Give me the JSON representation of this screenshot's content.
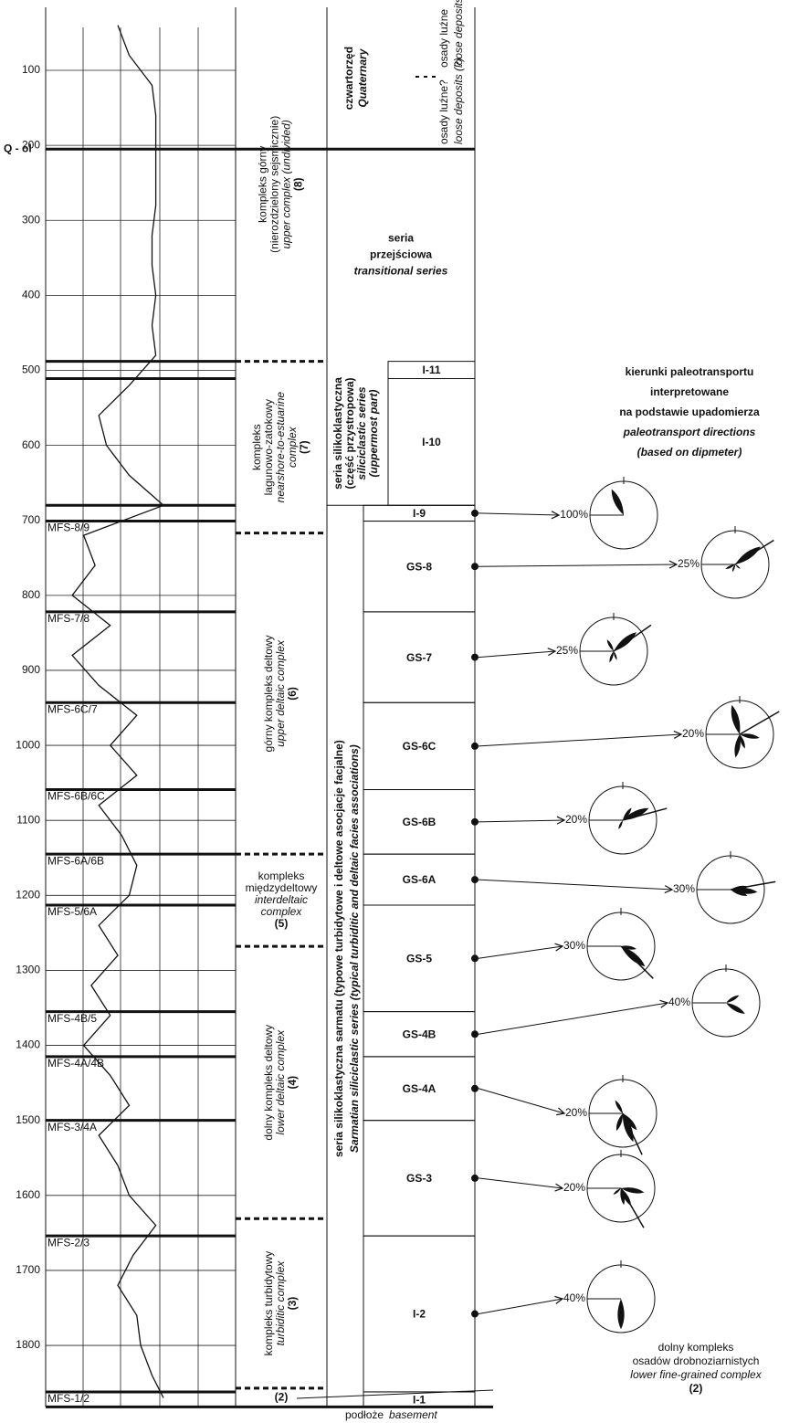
{
  "depth_axis": {
    "ticks": [
      100,
      200,
      300,
      400,
      500,
      600,
      700,
      800,
      900,
      1000,
      1100,
      1200,
      1300,
      1400,
      1500,
      1600,
      1700,
      1800
    ]
  },
  "log": {
    "xlim": [
      0,
      5
    ],
    "depth": [
      40,
      80,
      120,
      160,
      200,
      240,
      280,
      320,
      360,
      400,
      440,
      480,
      520,
      560,
      600,
      640,
      680,
      720,
      760,
      800,
      840,
      880,
      920,
      960,
      1000,
      1040,
      1080,
      1120,
      1160,
      1200,
      1240,
      1280,
      1320,
      1360,
      1400,
      1440,
      1480,
      1520,
      1560,
      1600,
      1640,
      1680,
      1720,
      1760,
      1800,
      1840,
      1870
    ],
    "values": [
      1.9,
      2.2,
      2.8,
      2.9,
      2.9,
      2.9,
      2.9,
      2.8,
      2.8,
      2.9,
      2.8,
      2.9,
      2.2,
      1.4,
      1.6,
      2.2,
      3.1,
      1.0,
      1.3,
      0.7,
      1.7,
      0.7,
      1.4,
      2.4,
      1.7,
      2.4,
      1.4,
      2.0,
      2.4,
      2.2,
      1.4,
      1.9,
      1.2,
      1.7,
      1.0,
      1.7,
      2.2,
      1.4,
      1.9,
      2.2,
      2.9,
      2.3,
      1.9,
      2.4,
      2.5,
      2.8,
      3.1
    ]
  },
  "horizons": [
    {
      "label": "Q - ol",
      "depth": 205,
      "full_width": true
    },
    {
      "depth": 488
    },
    {
      "depth": 511
    },
    {
      "depth": 680
    },
    {
      "label": "MFS-8/9",
      "depth": 701
    },
    {
      "label": "MFS-7/8",
      "depth": 822
    },
    {
      "label": "MFS-6C/7",
      "depth": 943
    },
    {
      "label": "MFS-6B/6C",
      "depth": 1059
    },
    {
      "label": "MFS-6A/6B",
      "depth": 1145
    },
    {
      "label": "MFS-5/6A",
      "depth": 1213
    },
    {
      "label": "MFS-4B/5",
      "depth": 1355
    },
    {
      "label": "MFS-4A/4B",
      "depth": 1415
    },
    {
      "label": "MFS-3/4A",
      "depth": 1500
    },
    {
      "label": "MFS-2/3",
      "depth": 1654
    },
    {
      "label": "MFS-1/2",
      "depth": 1862
    },
    {
      "depth": 1882
    }
  ],
  "complexes": [
    {
      "pl": [
        "kompleks górny",
        "(nierozdzielony sejsmicznie)"
      ],
      "en": [
        "upper complex (undivided)"
      ],
      "number": "(8)",
      "bottom": 488
    },
    {
      "pl": [
        "kompleks",
        "lagunowo-zatokowy"
      ],
      "en": [
        "nearshore-to-estuarine",
        "complex"
      ],
      "number": "(7)",
      "bottom": 717
    },
    {
      "pl": [
        "górny kompleks deltowy"
      ],
      "en": [
        "upper deltaic complex"
      ],
      "number": "(6)",
      "bottom": 1145
    },
    {
      "pl": [
        "kompleks",
        "międzydeltowy"
      ],
      "en": [
        "interdeltaic",
        "complex"
      ],
      "number": "(5)",
      "bottom": 1268,
      "horizontal": true
    },
    {
      "pl": [
        "dolny kompleks deltowy"
      ],
      "en": [
        "lower deltaic complex"
      ],
      "number": "(4)",
      "bottom": 1631
    },
    {
      "pl": [
        "kompleks turbidytowy"
      ],
      "en": [
        "turbiditic complex"
      ],
      "number": "(3)",
      "bottom": 1857
    },
    {
      "number": "(2)",
      "bottom": 1882,
      "horizontal": true
    }
  ],
  "callout": {
    "pl": [
      "dolny kompleks",
      "osadów drobnoziarnistych"
    ],
    "en": [
      "lower fine-grained complex"
    ],
    "number": "(2)"
  },
  "series_column": {
    "quaternary": {
      "pl": "czwartorzęd",
      "en": "Quaternary",
      "bottom": 205,
      "notes": [
        {
          "pl": "osady luźne?",
          "en": "loose deposits (?)"
        },
        {
          "pl": "osady luźne",
          "en": "loose deposits"
        }
      ]
    },
    "transitional": {
      "pl": [
        "seria",
        "przejściowa"
      ],
      "en": "transitional series",
      "bottom": 488
    },
    "uppermost": {
      "pl": [
        "seria silikoklastyczna",
        "(część przystropowa)"
      ],
      "en": [
        "siliciclastic series",
        "(uppermost part)"
      ],
      "bottom": 680
    },
    "sarmatian": {
      "pl": "seria silikoklastyczna sarmatu  (typowe turbidytowe i deltowe asocjacje facjalne)",
      "en": "Sarmatian siliciclastic series (typical turbiditic and deltaic facies associations)",
      "bottom": 1862
    },
    "basement": {
      "pl": "podłoże",
      "en": "basement"
    }
  },
  "units": [
    {
      "name": "I-11",
      "top": 488,
      "bottom": 511
    },
    {
      "name": "I-10",
      "top": 511,
      "bottom": 680
    },
    {
      "name": "I-9",
      "top": 680,
      "bottom": 701,
      "rose": {
        "scale": {
          "value": 100,
          "label": "100%"
        },
        "petals": [
          {
            "azimuth": 335,
            "percent": 85
          }
        ]
      }
    },
    {
      "name": "GS-8",
      "top": 701,
      "bottom": 822,
      "rose": {
        "scale": {
          "value": 25,
          "label": "25%"
        },
        "mean_azimuth": 58,
        "petals": [
          {
            "azimuth": 55,
            "percent": 23
          },
          {
            "azimuth": 245,
            "percent": 8
          },
          {
            "azimuth": 200,
            "percent": 6
          },
          {
            "azimuth": 130,
            "percent": 5
          }
        ]
      }
    },
    {
      "name": "GS-7",
      "top": 822,
      "bottom": 943,
      "rose": {
        "scale": {
          "value": 25,
          "label": "25%"
        },
        "mean_azimuth": 55,
        "petals": [
          {
            "azimuth": 50,
            "percent": 22
          },
          {
            "azimuth": 330,
            "percent": 10
          },
          {
            "azimuth": 200,
            "percent": 9
          },
          {
            "azimuth": 160,
            "percent": 7
          }
        ]
      }
    },
    {
      "name": "GS-6C",
      "top": 943,
      "bottom": 1059,
      "rose": {
        "scale": {
          "value": 20,
          "label": "20%"
        },
        "mean_azimuth": 60,
        "petals": [
          {
            "azimuth": 345,
            "percent": 18
          },
          {
            "azimuth": 100,
            "percent": 12
          },
          {
            "azimuth": 190,
            "percent": 14
          },
          {
            "azimuth": 160,
            "percent": 9
          }
        ]
      }
    },
    {
      "name": "GS-6B",
      "top": 1059,
      "bottom": 1145,
      "rose": {
        "scale": {
          "value": 20,
          "label": "20%"
        },
        "mean_azimuth": 75,
        "petals": [
          {
            "azimuth": 65,
            "percent": 17
          },
          {
            "azimuth": 35,
            "percent": 9
          },
          {
            "azimuth": 205,
            "percent": 6
          }
        ]
      }
    },
    {
      "name": "GS-6A",
      "top": 1145,
      "bottom": 1213,
      "rose": {
        "scale": {
          "value": 30,
          "label": "30%"
        },
        "mean_azimuth": 80,
        "petals": [
          {
            "azimuth": 95,
            "percent": 24
          },
          {
            "azimuth": 80,
            "percent": 16
          },
          {
            "azimuth": 110,
            "percent": 16
          }
        ]
      }
    },
    {
      "name": "GS-5",
      "top": 1213,
      "bottom": 1355,
      "rose": {
        "scale": {
          "value": 30,
          "label": "30%"
        },
        "mean_azimuth": 135,
        "petals": [
          {
            "azimuth": 130,
            "percent": 28
          },
          {
            "azimuth": 100,
            "percent": 14
          }
        ]
      }
    },
    {
      "name": "GS-4B",
      "top": 1355,
      "bottom": 1415,
      "rose": {
        "scale": {
          "value": 40,
          "label": "40%"
        },
        "petals": [
          {
            "azimuth": 120,
            "percent": 26
          },
          {
            "azimuth": 60,
            "percent": 18
          }
        ]
      }
    },
    {
      "name": "GS-4A",
      "top": 1415,
      "bottom": 1500,
      "rose": {
        "scale": {
          "value": 20,
          "label": "20%"
        },
        "mean_azimuth": 155,
        "petals": [
          {
            "azimuth": 160,
            "percent": 18
          },
          {
            "azimuth": 200,
            "percent": 11
          },
          {
            "azimuth": 140,
            "percent": 13
          },
          {
            "azimuth": 330,
            "percent": 9
          }
        ]
      }
    },
    {
      "name": "GS-3",
      "top": 1500,
      "bottom": 1654,
      "rose": {
        "scale": {
          "value": 20,
          "label": "20%"
        },
        "mean_azimuth": 150,
        "petals": [
          {
            "azimuth": 100,
            "percent": 14
          },
          {
            "azimuth": 170,
            "percent": 10
          },
          {
            "azimuth": 150,
            "percent": 12
          },
          {
            "azimuth": 230,
            "percent": 6
          }
        ]
      }
    },
    {
      "name": "I-2",
      "top": 1654,
      "bottom": 1862,
      "rose": {
        "scale": {
          "value": 40,
          "label": "40%"
        },
        "petals": [
          {
            "azimuth": 180,
            "percent": 36
          }
        ]
      }
    },
    {
      "name": "I-1",
      "top": 1862,
      "bottom": 1882
    }
  ],
  "title": {
    "pl": [
      "kierunki paleotransportu",
      "interpretowane",
      "na podstawie upadomierza"
    ],
    "en": [
      "paleotransport directions",
      "(based on dipmeter)"
    ]
  }
}
